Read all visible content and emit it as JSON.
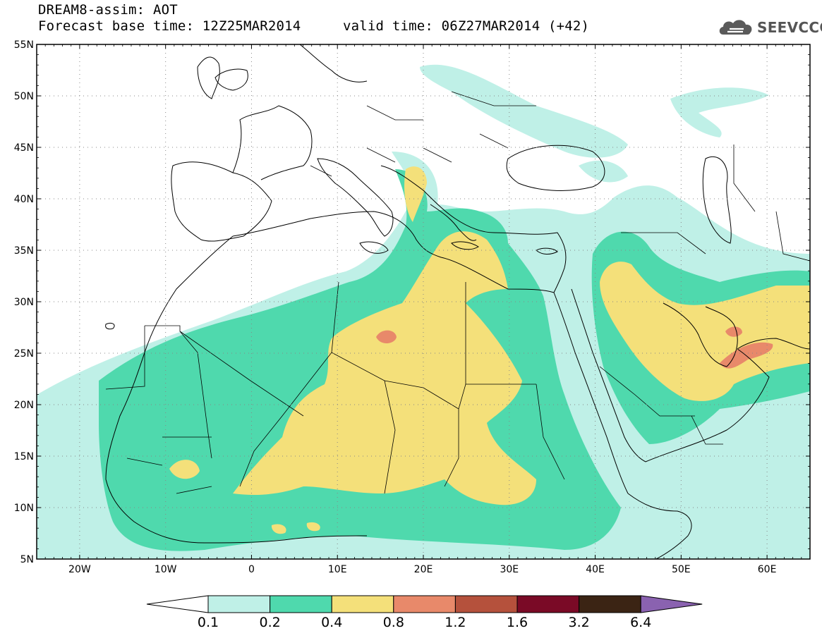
{
  "header": {
    "title": "DREAM8-assim: AOT",
    "base_time": "Forecast base time: 12Z25MAR2014",
    "valid_time": "valid time: 06Z27MAR2014 (+42)"
  },
  "logo": {
    "text": "SEEVCCC",
    "icon": "cloud-icon"
  },
  "map": {
    "lat_ticks": [
      "55N",
      "50N",
      "45N",
      "40N",
      "35N",
      "30N",
      "25N",
      "20N",
      "15N",
      "10N",
      "5N"
    ],
    "lon_ticks": [
      "20W",
      "10W",
      "0",
      "10E",
      "20E",
      "30E",
      "40E",
      "50E",
      "60E"
    ],
    "lat_range": [
      5,
      55
    ],
    "lon_range": [
      -25,
      65
    ],
    "gridlines": "dotted"
  },
  "colorbar": {
    "labels": [
      "0.1",
      "0.2",
      "0.4",
      "0.8",
      "1.2",
      "1.6",
      "3.2",
      "6.4"
    ],
    "colors": [
      "#ffffff",
      "#bff0e7",
      "#4fd9ad",
      "#f4e07a",
      "#e8896a",
      "#b5513c",
      "#7a0a26",
      "#3b2414",
      "#8a62b0"
    ]
  },
  "fields": {
    "level_colors": {
      "l1": "#bff0e7",
      "l2": "#4fd9ad",
      "l3": "#f4e07a",
      "l4": "#e8896a"
    }
  }
}
